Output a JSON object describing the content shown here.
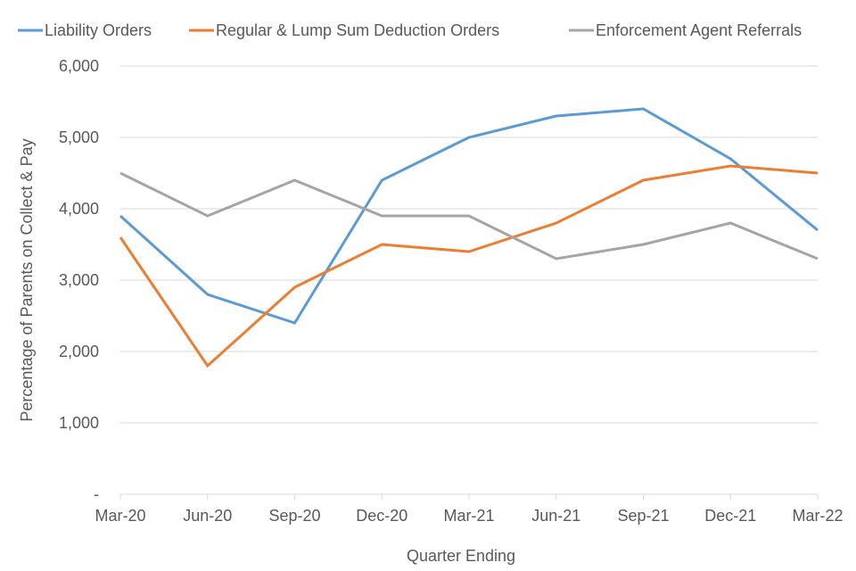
{
  "chart_data": {
    "type": "line",
    "title": "",
    "xlabel": "Quarter Ending",
    "ylabel": "Percentage of Parents on Collect & Pay",
    "categories": [
      "Mar-20",
      "Jun-20",
      "Sep-20",
      "Dec-20",
      "Mar-21",
      "Jun-21",
      "Sep-21",
      "Dec-21",
      "Mar-22"
    ],
    "ylim": [
      0,
      6000
    ],
    "yticks": [
      0,
      1000,
      2000,
      3000,
      4000,
      5000,
      6000
    ],
    "ytick_labels": [
      "-",
      "1,000",
      "2,000",
      "3,000",
      "4,000",
      "5,000",
      "6,000"
    ],
    "grid": true,
    "legend_position": "top",
    "series": [
      {
        "name": "Liability Orders",
        "color": "#5b9bd5",
        "values": [
          3900,
          2800,
          2400,
          4400,
          5000,
          5300,
          5400,
          4700,
          3700
        ]
      },
      {
        "name": "Regular & Lump Sum Deduction Orders",
        "color": "#ed7d31",
        "values": [
          3600,
          1800,
          2900,
          3500,
          3400,
          3800,
          4400,
          4600,
          4500
        ]
      },
      {
        "name": "Enforcement Agent Referrals",
        "color": "#a5a5a5",
        "values": [
          4500,
          3900,
          4400,
          3900,
          3900,
          3300,
          3500,
          3800,
          3300
        ]
      }
    ]
  }
}
